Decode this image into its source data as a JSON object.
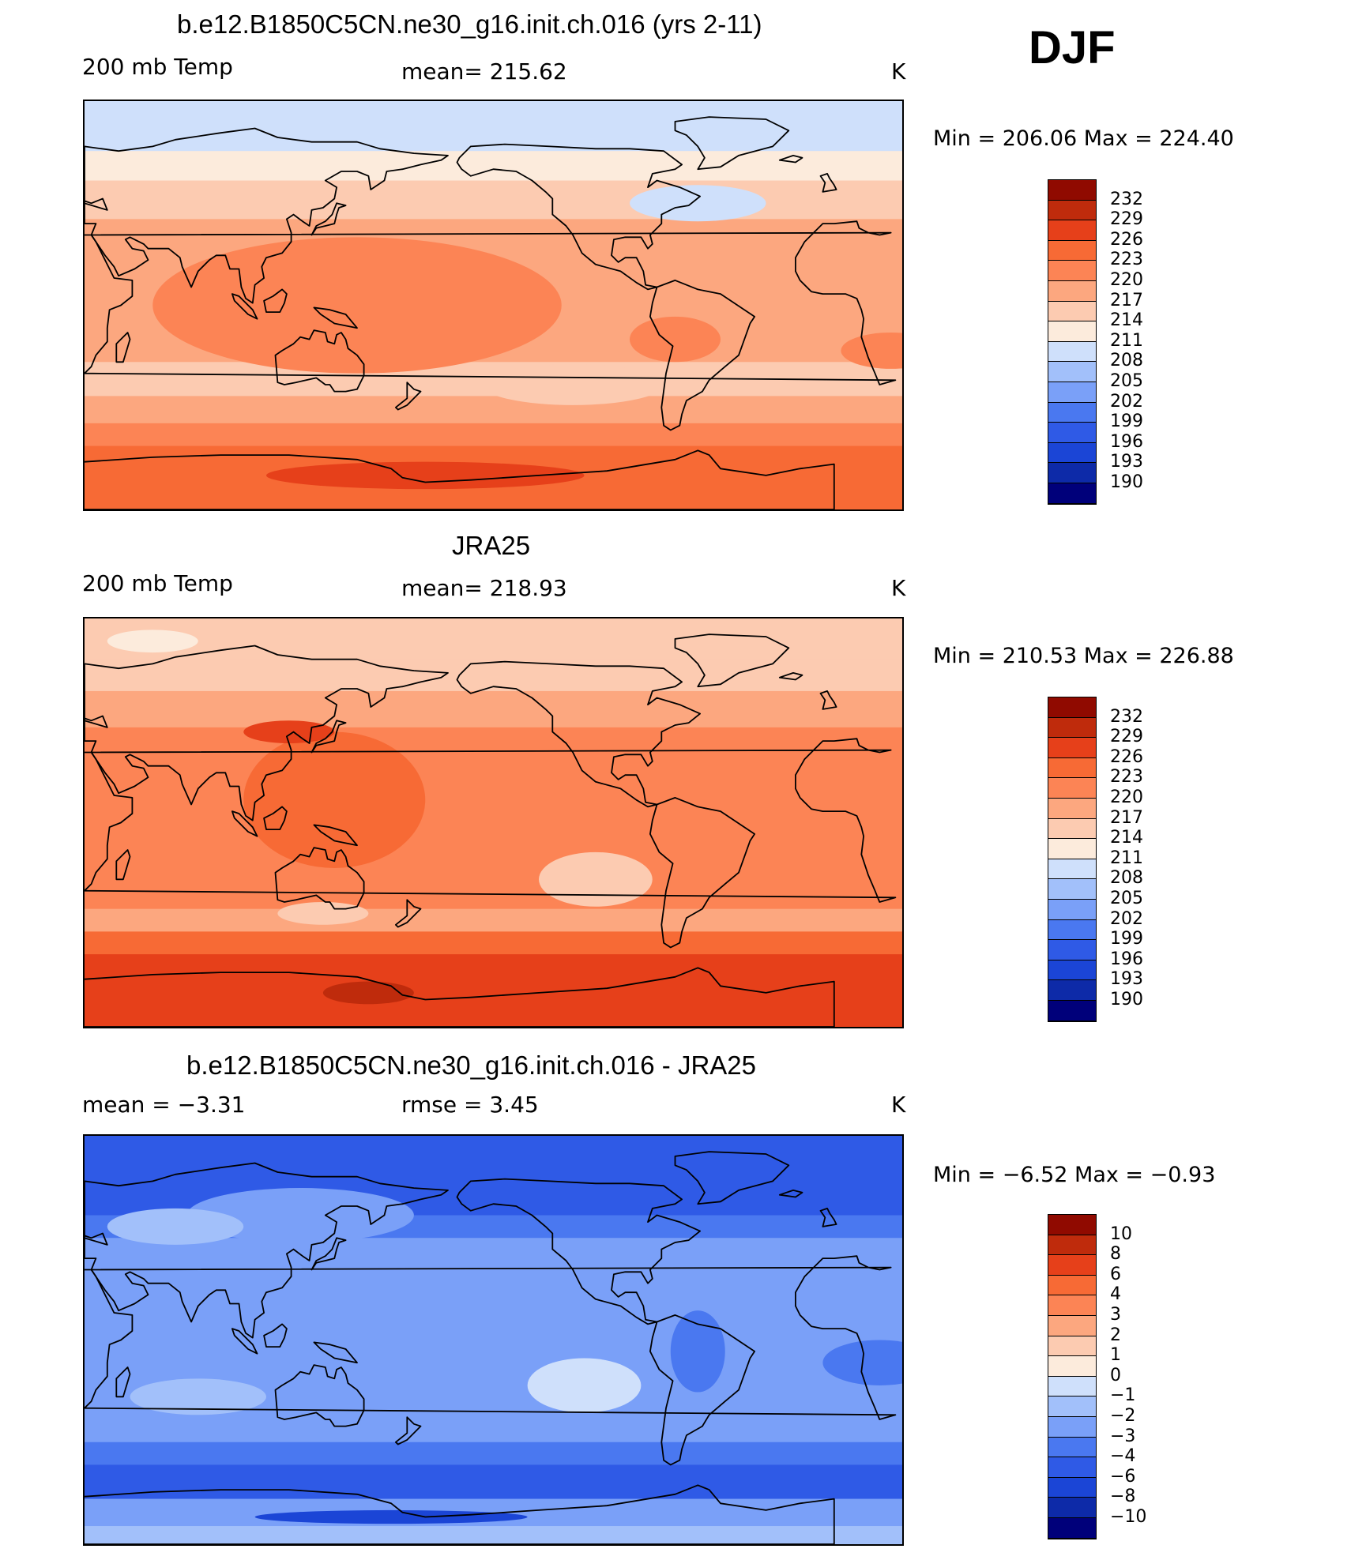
{
  "season": "DJF",
  "colors": {
    "abs_scale": [
      "#00007a",
      "#0d2aa8",
      "#1b45d6",
      "#2f5ae6",
      "#4a78f0",
      "#7aa0f8",
      "#a2c0fa",
      "#cfe0fb",
      "#fcebdc",
      "#fccbb1",
      "#fca77f",
      "#fc8455",
      "#f76a35",
      "#e6401a",
      "#bf2b0c",
      "#900a00"
    ],
    "diff_scale": [
      "#00007a",
      "#0d2aa8",
      "#1b45d6",
      "#2f5ae6",
      "#4a78f0",
      "#7aa0f8",
      "#a2c0fa",
      "#cfe0fb",
      "#fcebdc",
      "#fccbb1",
      "#fca77f",
      "#fc8455",
      "#f76a35",
      "#e6401a",
      "#bf2b0c",
      "#900a00"
    ],
    "coast": "#000000"
  },
  "abs_levels": [
    "232",
    "229",
    "226",
    "223",
    "220",
    "217",
    "214",
    "211",
    "208",
    "205",
    "202",
    "199",
    "196",
    "193",
    "190"
  ],
  "diff_levels": [
    "10",
    "8",
    "6",
    "4",
    "3",
    "2",
    "1",
    "0",
    "−1",
    "−2",
    "−3",
    "−4",
    "−6",
    "−8",
    "−10"
  ],
  "panels": [
    {
      "id": "model",
      "title": "b.e12.B1850C5CN.ne30_g16.init.ch.016 (yrs 2-11)",
      "left_label": "200 mb Temp",
      "center_label": "mean=  215.62",
      "unit": "K",
      "min_max": "Min  =  206.06  Max  =  224.40",
      "scale": "abs",
      "bands": [
        {
          "from": 90,
          "to": 68,
          "level": 7
        },
        {
          "from": 68,
          "to": 55,
          "level": 8
        },
        {
          "from": 55,
          "to": 38,
          "level": 9
        },
        {
          "from": 38,
          "to": -25,
          "level": 10
        },
        {
          "from": -25,
          "to": -40,
          "level": 9
        },
        {
          "from": -40,
          "to": -52,
          "level": 10
        },
        {
          "from": -52,
          "to": -62,
          "level": 11
        },
        {
          "from": -62,
          "to": -90,
          "level": 12
        }
      ],
      "blobs": [
        {
          "lon": 150,
          "lat": 0,
          "rlon": 90,
          "rlat": 30,
          "level": 11
        },
        {
          "lon": 25,
          "lat": -20,
          "rlon": 22,
          "rlat": 8,
          "level": 11
        },
        {
          "lon": 290,
          "lat": -15,
          "rlon": 20,
          "rlat": 10,
          "level": 11
        },
        {
          "lon": 245,
          "lat": -35,
          "rlon": 40,
          "rlat": 9,
          "level": 9
        },
        {
          "lon": 300,
          "lat": 45,
          "rlon": 30,
          "rlat": 8,
          "level": 7
        },
        {
          "lon": 180,
          "lat": -75,
          "rlon": 70,
          "rlat": 6,
          "level": 13
        }
      ]
    },
    {
      "id": "obs",
      "title": "JRA25",
      "left_label": "200 mb Temp",
      "center_label": "mean=  218.93",
      "unit": "K",
      "min_max": "Min  =  210.53  Max  =  226.88",
      "scale": "abs",
      "bands": [
        {
          "from": 90,
          "to": 72,
          "level": 9
        },
        {
          "from": 72,
          "to": 58,
          "level": 9
        },
        {
          "from": 58,
          "to": 42,
          "level": 10
        },
        {
          "from": 42,
          "to": -38,
          "level": 11
        },
        {
          "from": -38,
          "to": -48,
          "level": 10
        },
        {
          "from": -48,
          "to": -58,
          "level": 12
        },
        {
          "from": -58,
          "to": -90,
          "level": 13
        }
      ],
      "blobs": [
        {
          "lon": 140,
          "lat": 10,
          "rlon": 40,
          "rlat": 30,
          "level": 12
        },
        {
          "lon": 120,
          "lat": 40,
          "rlon": 20,
          "rlat": 5,
          "level": 13
        },
        {
          "lon": 60,
          "lat": 80,
          "rlon": 20,
          "rlat": 5,
          "level": 8
        },
        {
          "lon": 255,
          "lat": -25,
          "rlon": 25,
          "rlat": 12,
          "level": 9
        },
        {
          "lon": 135,
          "lat": -40,
          "rlon": 20,
          "rlat": 5,
          "level": 9
        },
        {
          "lon": 155,
          "lat": -75,
          "rlon": 20,
          "rlat": 5,
          "level": 14
        }
      ]
    },
    {
      "id": "diff",
      "title": "b.e12.B1850C5CN.ne30_g16.init.ch.016 - JRA25",
      "left_label": "mean  =    −3.31",
      "center_label": "rmse  =     3.45",
      "unit": "K",
      "min_max": "Min  =    −6.52  Max  =    −0.93",
      "scale": "diff",
      "bands": [
        {
          "from": 90,
          "to": 55,
          "level": 3
        },
        {
          "from": 55,
          "to": 45,
          "level": 4
        },
        {
          "from": 45,
          "to": -45,
          "level": 5
        },
        {
          "from": -45,
          "to": -55,
          "level": 4
        },
        {
          "from": -55,
          "to": -70,
          "level": 3
        },
        {
          "from": -70,
          "to": -82,
          "level": 5
        },
        {
          "from": -82,
          "to": -90,
          "level": 6
        }
      ],
      "blobs": [
        {
          "lon": 125,
          "lat": 55,
          "rlon": 50,
          "rlat": 12,
          "level": 5
        },
        {
          "lon": 70,
          "lat": 50,
          "rlon": 30,
          "rlat": 8,
          "level": 6
        },
        {
          "lon": 250,
          "lat": -20,
          "rlon": 25,
          "rlat": 12,
          "level": 7
        },
        {
          "lon": 80,
          "lat": -25,
          "rlon": 30,
          "rlat": 8,
          "level": 6
        },
        {
          "lon": 165,
          "lat": -78,
          "rlon": 60,
          "rlat": 3,
          "level": 2
        },
        {
          "lon": 300,
          "lat": -5,
          "rlon": 12,
          "rlat": 18,
          "level": 4
        },
        {
          "lon": 20,
          "lat": -10,
          "rlon": 25,
          "rlat": 10,
          "level": 4
        }
      ]
    }
  ]
}
